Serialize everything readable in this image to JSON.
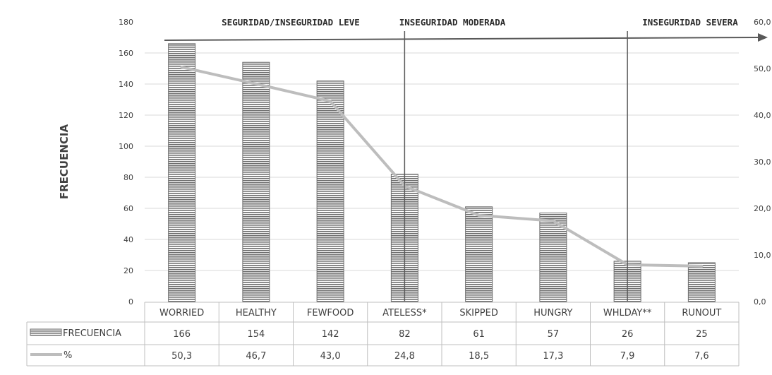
{
  "chart_data": {
    "type": "bar",
    "ylabel": "FRECUENCIA",
    "categories": [
      "WORRIED",
      "HEALTHY",
      "FEWFOOD",
      "ATELESS*",
      "SKIPPED",
      "HUNGRY",
      "WHLDAY**",
      "RUNOUT"
    ],
    "series": [
      {
        "name": "FRECUENCIA",
        "type": "bar",
        "axis": "left",
        "values": [
          166,
          154,
          142,
          82,
          61,
          57,
          26,
          25
        ],
        "labels": [
          "166",
          "154",
          "142",
          "82",
          "61",
          "57",
          "26",
          "25"
        ]
      },
      {
        "name": "%",
        "type": "line",
        "axis": "right",
        "values": [
          50.3,
          46.7,
          43.0,
          24.8,
          18.5,
          17.3,
          7.9,
          7.6
        ],
        "labels": [
          "50,3",
          "46,7",
          "43,0",
          "24,8",
          "18,5",
          "17,3",
          "7,9",
          "7,6"
        ]
      }
    ],
    "ylim": [
      0,
      180
    ],
    "y_ticks": [
      "0",
      "20",
      "40",
      "60",
      "80",
      "100",
      "120",
      "140",
      "160",
      "180"
    ],
    "y2lim": [
      0,
      60
    ],
    "y2_ticks": [
      "0,0",
      "10,0",
      "20,0",
      "30,0",
      "40,0",
      "50,0",
      "60,0"
    ],
    "zones": [
      "SEGURIDAD/INSEGURIDAD LEVE",
      "INSEGURIDAD MODERADA",
      "INSEGURIDAD SEVERA"
    ],
    "grid": true,
    "legend": "data-table",
    "colors": {
      "bar": "#6e6e6e",
      "line": "#bdbdbd",
      "grid": "#d9d9d9",
      "arrow": "#595959"
    }
  }
}
